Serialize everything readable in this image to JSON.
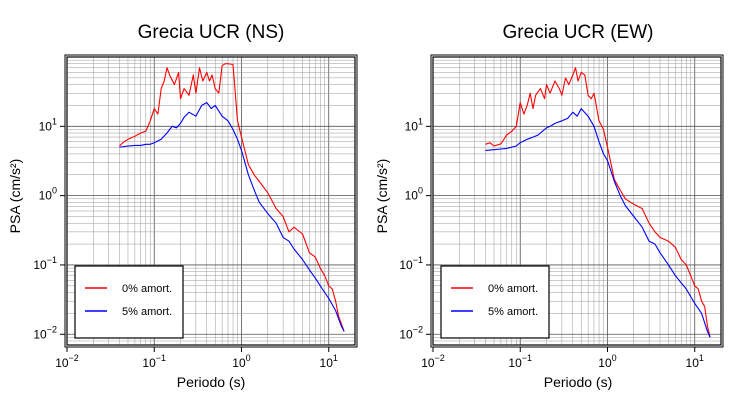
{
  "chart_data": [
    {
      "type": "line",
      "title": "Grecia UCR (NS)",
      "xlabel": "Periodo (s)",
      "ylabel": "PSA (cm/s²)",
      "xscale": "log",
      "yscale": "log",
      "xlim": [
        0.01,
        20
      ],
      "ylim": [
        0.007,
        100
      ],
      "grid": true,
      "legend_position": "bottom-left",
      "xticks": [
        {
          "label": "10",
          "exp": "−2"
        },
        {
          "label": "10",
          "exp": "−1"
        },
        {
          "label": "10",
          "exp": "0"
        },
        {
          "label": "10",
          "exp": "1"
        }
      ],
      "yticks": [
        {
          "value": 0.01,
          "label": "10",
          "exp": "−2"
        },
        {
          "value": 0.1,
          "label": "10",
          "exp": "−1"
        },
        {
          "value": 1,
          "label": "10",
          "exp": "0"
        },
        {
          "value": 10,
          "label": "10",
          "exp": "1"
        }
      ],
      "series": [
        {
          "name": "0% amort.",
          "color": "#ff0000",
          "x": [
            0.04,
            0.045,
            0.05,
            0.06,
            0.07,
            0.08,
            0.09,
            0.1,
            0.11,
            0.12,
            0.13,
            0.14,
            0.15,
            0.17,
            0.19,
            0.2,
            0.22,
            0.25,
            0.28,
            0.3,
            0.33,
            0.36,
            0.4,
            0.43,
            0.46,
            0.5,
            0.55,
            0.6,
            0.65,
            0.7,
            0.8,
            0.9,
            1.0,
            1.2,
            1.4,
            1.6,
            2.0,
            2.5,
            3.0,
            3.5,
            4.0,
            5.0,
            6.0,
            7.0,
            8.0,
            9.0,
            10.0,
            11.0,
            12.0,
            13.0,
            14.0,
            15.0
          ],
          "y": [
            5.2,
            6.0,
            6.5,
            7.2,
            8.0,
            8.5,
            12.0,
            18.0,
            15.0,
            35.0,
            45.0,
            70.0,
            55.0,
            40.0,
            60.0,
            25.0,
            35.0,
            28.0,
            55.0,
            30.0,
            70.0,
            45.0,
            60.0,
            45.0,
            55.0,
            35.0,
            30.0,
            75.0,
            80.0,
            80.0,
            78.0,
            12.0,
            7.0,
            2.8,
            2.0,
            1.6,
            1.1,
            0.65,
            0.5,
            0.3,
            0.35,
            0.28,
            0.15,
            0.13,
            0.09,
            0.07,
            0.05,
            0.045,
            0.03,
            0.018,
            0.014,
            0.011
          ]
        },
        {
          "name": "5% amort.",
          "color": "#0000ff",
          "x": [
            0.04,
            0.05,
            0.06,
            0.07,
            0.08,
            0.09,
            0.1,
            0.12,
            0.14,
            0.16,
            0.18,
            0.2,
            0.22,
            0.25,
            0.3,
            0.35,
            0.4,
            0.45,
            0.5,
            0.6,
            0.7,
            0.8,
            0.9,
            1.0,
            1.2,
            1.4,
            1.6,
            2.0,
            2.5,
            3.0,
            3.5,
            4.0,
            5.0,
            6.0,
            7.0,
            8.0,
            9.0,
            10.0,
            12.0,
            14.0,
            15.0
          ],
          "y": [
            5.0,
            5.2,
            5.3,
            5.3,
            5.5,
            5.5,
            5.8,
            6.5,
            8.0,
            10.0,
            9.5,
            11.0,
            13.5,
            16.0,
            14.0,
            20.0,
            22.0,
            18.0,
            20.0,
            14.0,
            12.0,
            9.0,
            6.5,
            4.5,
            2.0,
            1.2,
            0.8,
            0.55,
            0.4,
            0.25,
            0.22,
            0.17,
            0.12,
            0.085,
            0.065,
            0.05,
            0.04,
            0.033,
            0.022,
            0.013,
            0.011
          ]
        }
      ]
    },
    {
      "type": "line",
      "title": "Grecia UCR (EW)",
      "xlabel": "Periodo (s)",
      "ylabel": "PSA (cm/s²)",
      "xscale": "log",
      "yscale": "log",
      "xlim": [
        0.01,
        20
      ],
      "ylim": [
        0.007,
        100
      ],
      "grid": true,
      "legend_position": "bottom-left",
      "xticks": [
        {
          "label": "10",
          "exp": "−2"
        },
        {
          "label": "10",
          "exp": "−1"
        },
        {
          "label": "10",
          "exp": "0"
        },
        {
          "label": "10",
          "exp": "1"
        }
      ],
      "yticks": [
        {
          "value": 0.01,
          "label": "10",
          "exp": "−2"
        },
        {
          "value": 0.1,
          "label": "10",
          "exp": "−1"
        },
        {
          "value": 1,
          "label": "10",
          "exp": "0"
        },
        {
          "value": 10,
          "label": "10",
          "exp": "1"
        }
      ],
      "series": [
        {
          "name": "0% amort.",
          "color": "#ff0000",
          "x": [
            0.04,
            0.045,
            0.05,
            0.06,
            0.07,
            0.08,
            0.09,
            0.1,
            0.11,
            0.12,
            0.13,
            0.14,
            0.15,
            0.17,
            0.19,
            0.2,
            0.22,
            0.25,
            0.28,
            0.3,
            0.33,
            0.36,
            0.4,
            0.43,
            0.46,
            0.5,
            0.55,
            0.6,
            0.65,
            0.7,
            0.8,
            0.9,
            1.0,
            1.2,
            1.4,
            1.6,
            2.0,
            2.5,
            3.0,
            3.5,
            4.0,
            5.0,
            6.0,
            7.0,
            8.0,
            9.0,
            10.0,
            11.0,
            12.0,
            13.0,
            14.0,
            15.0
          ],
          "y": [
            5.5,
            5.8,
            5.2,
            5.6,
            7.5,
            8.5,
            10.0,
            22.0,
            15.0,
            20.0,
            30.0,
            18.0,
            28.0,
            35.0,
            25.0,
            40.0,
            30.0,
            45.0,
            35.0,
            28.0,
            50.0,
            40.0,
            55.0,
            70.0,
            45.0,
            60.0,
            55.0,
            28.0,
            25.0,
            30.0,
            12.0,
            9.0,
            5.0,
            1.7,
            1.2,
            0.9,
            0.75,
            0.65,
            0.4,
            0.3,
            0.25,
            0.22,
            0.18,
            0.12,
            0.1,
            0.07,
            0.05,
            0.045,
            0.03,
            0.025,
            0.013,
            0.009
          ]
        },
        {
          "name": "5% amort.",
          "color": "#0000ff",
          "x": [
            0.04,
            0.05,
            0.06,
            0.07,
            0.08,
            0.09,
            0.1,
            0.12,
            0.14,
            0.16,
            0.18,
            0.2,
            0.22,
            0.25,
            0.3,
            0.35,
            0.4,
            0.45,
            0.5,
            0.6,
            0.7,
            0.8,
            0.9,
            1.0,
            1.2,
            1.4,
            1.6,
            2.0,
            2.5,
            3.0,
            3.5,
            4.0,
            5.0,
            6.0,
            7.0,
            8.0,
            9.0,
            10.0,
            12.0,
            14.0,
            15.0
          ],
          "y": [
            4.5,
            4.6,
            4.7,
            4.8,
            5.0,
            5.2,
            5.8,
            6.5,
            7.0,
            7.5,
            8.5,
            9.5,
            10.0,
            11.0,
            12.0,
            13.0,
            16.0,
            14.0,
            18.0,
            14.0,
            10.0,
            6.0,
            4.0,
            3.2,
            1.6,
            1.0,
            0.72,
            0.5,
            0.35,
            0.22,
            0.2,
            0.15,
            0.1,
            0.07,
            0.055,
            0.045,
            0.035,
            0.028,
            0.02,
            0.011,
            0.009
          ]
        }
      ]
    }
  ]
}
